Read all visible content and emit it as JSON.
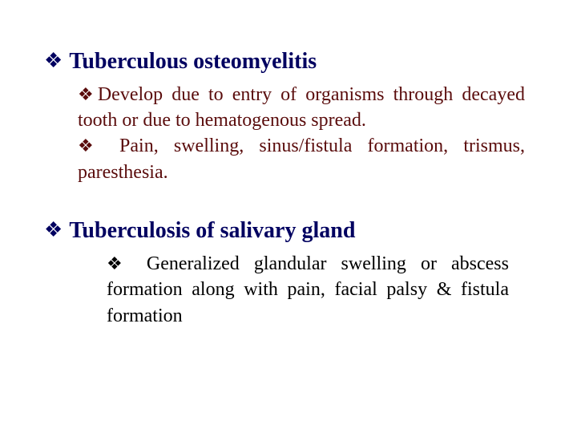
{
  "colors": {
    "headingNavy": "#000060",
    "bodyDarkRed": "#5a0c0c",
    "bodyBlack": "#000000",
    "background": "#ffffff"
  },
  "typography": {
    "fontFamily": "Times New Roman",
    "headingSize": 28,
    "bodySize": 24,
    "bulletGlyph": "❖"
  },
  "section1": {
    "bullet": "❖",
    "heading": " Tuberculous osteomyelitis",
    "para1_bullet": "❖",
    "para1_text": "Develop due to entry of organisms through decayed tooth or due to hematogenous spread.",
    "para2_bullet": "❖",
    "para2_text": " Pain, swelling, sinus/fistula formation, trismus, paresthesia."
  },
  "section2": {
    "bullet": "❖",
    "heading": " Tuberculosis of salivary gland",
    "para1_bullet": "❖",
    "para1_text": " Generalized glandular swelling or abscess formation along with pain, facial palsy & fistula formation"
  }
}
